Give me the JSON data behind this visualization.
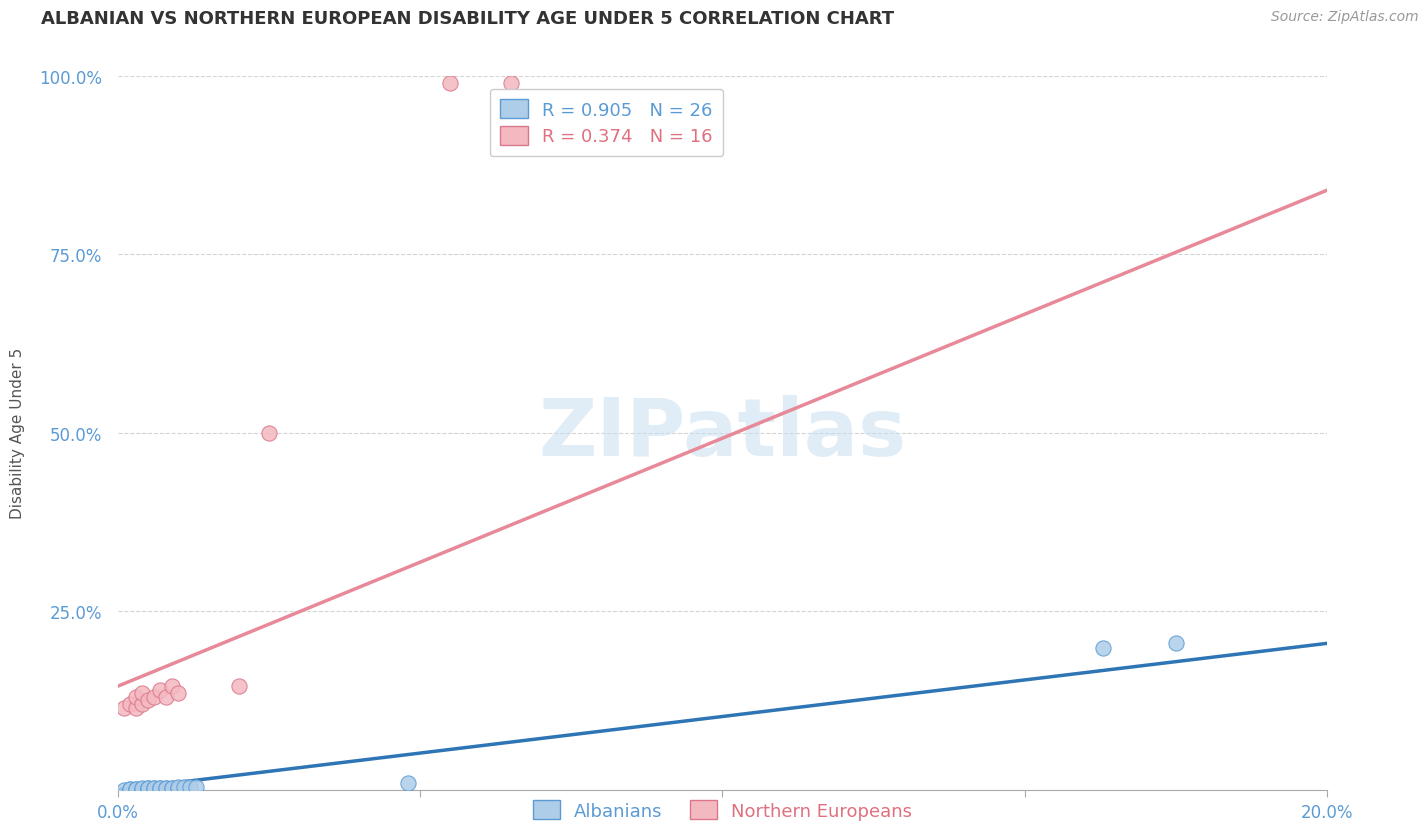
{
  "title": "ALBANIAN VS NORTHERN EUROPEAN DISABILITY AGE UNDER 5 CORRELATION CHART",
  "source": "Source: ZipAtlas.com",
  "ylabel": "Disability Age Under 5",
  "xlim": [
    0.0,
    0.2
  ],
  "ylim": [
    0.0,
    1.0
  ],
  "watermark": "ZIPatlas",
  "albanians": {
    "scatter_color": "#aecde8",
    "scatter_edge": "#5b9bd5",
    "line_color": "#2e75b6",
    "R": 0.905,
    "N": 26,
    "x": [
      0.001,
      0.002,
      0.002,
      0.003,
      0.003,
      0.004,
      0.004,
      0.005,
      0.005,
      0.005,
      0.006,
      0.006,
      0.007,
      0.007,
      0.008,
      0.008,
      0.009,
      0.009,
      0.01,
      0.01,
      0.011,
      0.012,
      0.013,
      0.048,
      0.163,
      0.175
    ],
    "y": [
      0.0,
      0.001,
      0.001,
      0.001,
      0.001,
      0.001,
      0.002,
      0.001,
      0.002,
      0.002,
      0.002,
      0.002,
      0.002,
      0.003,
      0.003,
      0.003,
      0.003,
      0.003,
      0.003,
      0.004,
      0.004,
      0.004,
      0.004,
      0.01,
      0.198,
      0.205
    ],
    "line_x": [
      0.0,
      0.2
    ],
    "line_y": [
      0.0,
      0.205
    ]
  },
  "northern_europeans": {
    "scatter_color": "#f4b8c1",
    "scatter_edge": "#d9788a",
    "line_color": "#e8899a",
    "R": 0.374,
    "N": 16,
    "x": [
      0.001,
      0.002,
      0.003,
      0.003,
      0.004,
      0.004,
      0.005,
      0.006,
      0.007,
      0.008,
      0.009,
      0.01,
      0.02,
      0.025,
      0.055,
      0.065
    ],
    "y": [
      0.115,
      0.12,
      0.115,
      0.13,
      0.12,
      0.135,
      0.125,
      0.13,
      0.14,
      0.13,
      0.145,
      0.135,
      0.145,
      0.5,
      0.99,
      0.99
    ],
    "line_x": [
      0.0,
      0.2
    ],
    "line_y": [
      0.145,
      0.84
    ]
  },
  "legend": {
    "albanian_label": "Albanians",
    "northern_label": "Northern Europeans"
  },
  "grid_color": "#d0d0d0",
  "background_color": "#ffffff",
  "title_fontsize": 13,
  "axis_label_fontsize": 11,
  "tick_fontsize": 12,
  "source_fontsize": 10
}
